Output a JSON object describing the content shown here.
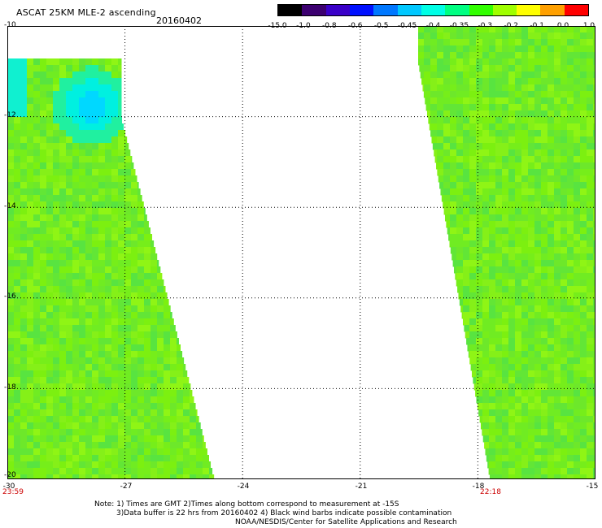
{
  "header": {
    "title": "ASCAT 25KM MLE-2 ascending",
    "date": "20160402"
  },
  "colorbar": {
    "labels": [
      "-15.0",
      "-1.0",
      "-0.8",
      "-0.6",
      "-0.5",
      "-0.45",
      "-0.4",
      "-0.35",
      "-0.3",
      "-0.2",
      "-0.1",
      "0.0",
      "1.0"
    ],
    "colors": [
      "#000000",
      "#3c0070",
      "#3a00c8",
      "#0010ff",
      "#0078ff",
      "#00c8ff",
      "#00ffe6",
      "#00ff82",
      "#32ff00",
      "#a0ff00",
      "#ffff00",
      "#ffa000",
      "#ff0000"
    ]
  },
  "map": {
    "lon_ticks": [
      "-30",
      "-27",
      "-24",
      "-21",
      "-18",
      "-15"
    ],
    "lat_ticks": [
      "-10",
      "-12",
      "-14",
      "-16",
      "-18",
      "-20"
    ],
    "lon_range": [
      -30,
      -15
    ],
    "lat_range": [
      -20,
      -10
    ],
    "grid": true,
    "time_labels": [
      "23:59",
      "22:18"
    ]
  },
  "notes": {
    "line1": "Note: 1) Times are GMT 2)Times along bottom correspond to measurement at -15S",
    "line2": "3)Data buffer is 22 hrs from 20160402 4) Black wind barbs indicate possible contamination",
    "line3": "NOAA/NESDIS/Center for Satellite Applications and Research"
  }
}
